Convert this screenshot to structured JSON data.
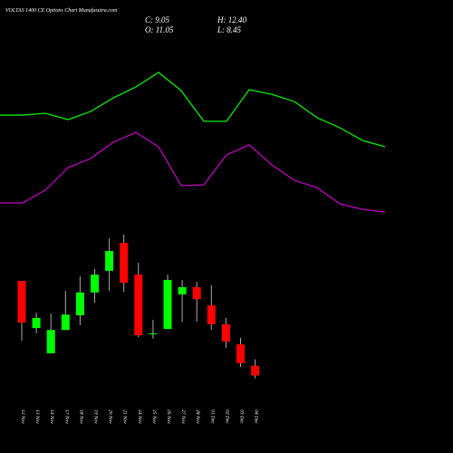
{
  "chart_data": [
    {
      "type": "line",
      "ylim": [
        0,
        100
      ],
      "series": [
        {
          "color": "#00ee00",
          "values": [
            64.7,
            64.7,
            65.8,
            62.1,
            66.8,
            74.7,
            81.1,
            89.5,
            78.9,
            61.1,
            61.1,
            79.5,
            76.8,
            72.6,
            63.2,
            57.4,
            50.0,
            46.3
          ]
        },
        {
          "color": "#c000c0",
          "values": [
            13.7,
            13.7,
            21.1,
            34.2,
            39.5,
            48.9,
            54.7,
            46.3,
            23.7,
            24.2,
            41.6,
            47.4,
            35.8,
            26.8,
            22.6,
            13.2,
            10.0,
            8.4
          ]
        }
      ]
    },
    {
      "type": "candlestick",
      "title": "VOLTAS 1400  CE Options  Chart Munafasutra.com",
      "info_labels": [
        "C: 9.05",
        "H: 12.40",
        "O: 11.05",
        "L: 8.45"
      ],
      "ylim": [
        8,
        40
      ],
      "up_color": "#00ff00",
      "down_color": "#ff0000",
      "categories": [
        "12 Nov",
        "13 Nov",
        "14 Nov",
        "17 Nov",
        "18 Nov",
        "19 Nov",
        "20 Nov",
        "21 Nov",
        "24 Nov",
        "25 Nov",
        "26 Nov",
        "27 Nov",
        "28 Nov",
        "01 Dec",
        "02 Dec",
        "03 Dec",
        "04 Dec"
      ],
      "open": [
        28.7,
        18.9,
        13.65,
        18.5,
        21.55,
        26.3,
        30.8,
        36.6,
        30.0,
        17.7,
        18.7,
        25.9,
        27.4,
        23.6,
        19.7,
        15.5,
        11.05
      ],
      "high": [
        28.7,
        22.1,
        21.9,
        26.6,
        29.6,
        31.15,
        37.55,
        38.3,
        32.5,
        20.6,
        30.0,
        28.9,
        28.5,
        27.8,
        21.0,
        16.85,
        12.4
      ],
      "low": [
        16.3,
        17.8,
        13.65,
        18.5,
        19.5,
        24.2,
        26.6,
        26.4,
        17.0,
        16.7,
        18.7,
        20.2,
        20.2,
        18.5,
        14.8,
        10.8,
        8.45
      ],
      "close": [
        20.05,
        21.0,
        18.5,
        21.7,
        26.3,
        30.0,
        34.9,
        28.3,
        17.4,
        17.8,
        28.9,
        27.4,
        24.9,
        19.7,
        16.1,
        11.6,
        9.05
      ]
    }
  ]
}
